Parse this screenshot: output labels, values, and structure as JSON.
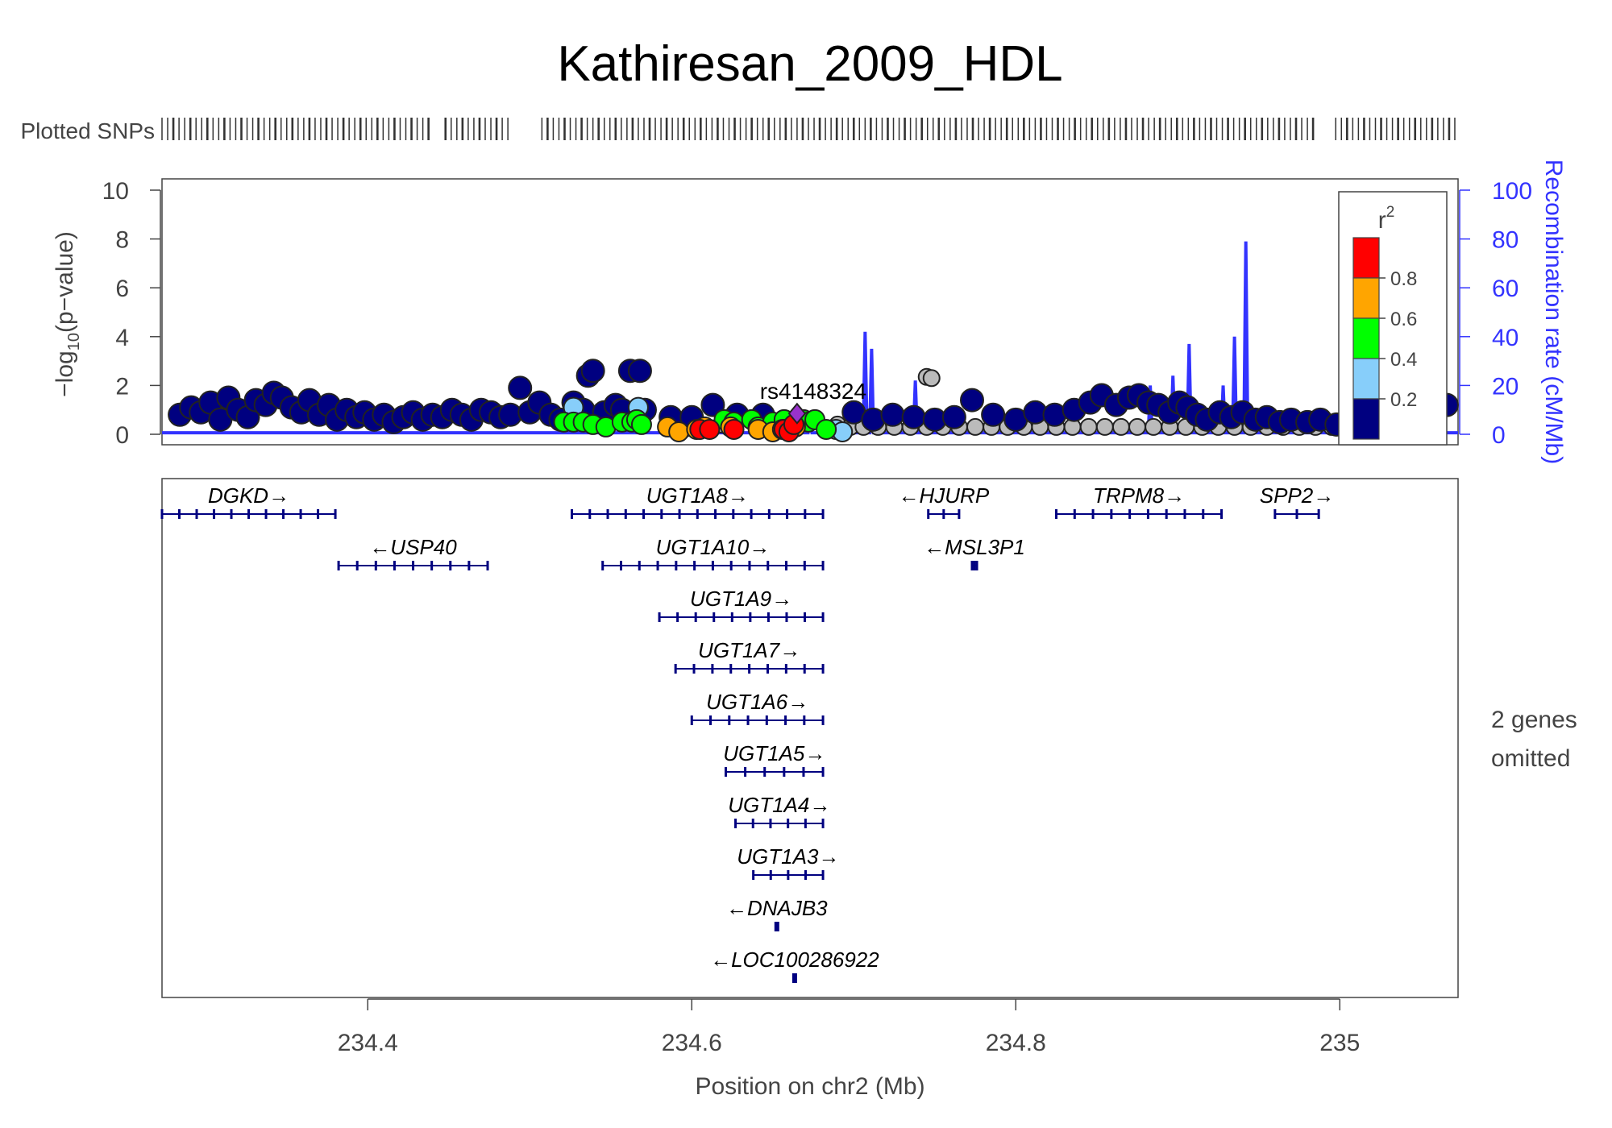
{
  "chart_data": {
    "type": "scatter",
    "title": "Kathiresan_2009_HDL",
    "plotted_snps_label": "Plotted SNPs",
    "xlabel": "Position on chr2 (Mb)",
    "ylabel_prefix": "−log",
    "ylabel_sub": "10",
    "ylabel_suffix": "(p−value)",
    "ylabel_right": "Recombination rate (cM/Mb)",
    "xlim": [
      234.273,
      235.073
    ],
    "ylim": [
      0,
      10
    ],
    "ylim_right": [
      0,
      100
    ],
    "x_ticks": [
      234.4,
      234.6,
      234.8,
      235
    ],
    "x_tick_labels": [
      "234.4",
      "234.6",
      "234.8",
      "235"
    ],
    "y_ticks": [
      0,
      2,
      4,
      6,
      8,
      10
    ],
    "y_tick_labels": [
      "0",
      "2",
      "4",
      "6",
      "8",
      "10"
    ],
    "y_right_ticks": [
      0,
      20,
      40,
      60,
      80,
      100
    ],
    "y_right_tick_labels": [
      "0",
      "20",
      "40",
      "60",
      "80",
      "100"
    ],
    "lead_snp_label": "rs4148324",
    "lead_snp": {
      "x": 234.665,
      "y": 0.85
    },
    "legend": {
      "title": "r",
      "title_sup": "2",
      "placement": "top-right",
      "break_labels": [
        "0.8",
        "0.6",
        "0.4",
        "0.2"
      ],
      "colors": [
        "#FF0000",
        "#FFA500",
        "#00FF00",
        "#87CEFA",
        "#000080"
      ]
    },
    "colors": {
      "recomb": "#3333ff",
      "gene": "#000080",
      "snp_outline": "#222222",
      "lead": "#9932CC",
      "gray": "#bbbbbb",
      "axis": "#444444"
    },
    "recomb_peaks": [
      {
        "x": 234.673,
        "y": 7
      },
      {
        "x": 234.681,
        "y": 5
      },
      {
        "x": 234.707,
        "y": 42
      },
      {
        "x": 234.711,
        "y": 35
      },
      {
        "x": 234.738,
        "y": 22
      },
      {
        "x": 234.883,
        "y": 20
      },
      {
        "x": 234.897,
        "y": 24
      },
      {
        "x": 234.907,
        "y": 37
      },
      {
        "x": 234.928,
        "y": 20
      },
      {
        "x": 234.935,
        "y": 40
      },
      {
        "x": 234.942,
        "y": 79
      }
    ],
    "navy_points": [
      [
        234.284,
        0.8
      ],
      [
        234.291,
        1.1
      ],
      [
        234.297,
        0.9
      ],
      [
        234.303,
        1.3
      ],
      [
        234.309,
        0.6
      ],
      [
        234.314,
        1.5
      ],
      [
        234.32,
        1.0
      ],
      [
        234.326,
        0.7
      ],
      [
        234.331,
        1.4
      ],
      [
        234.337,
        1.2
      ],
      [
        234.342,
        1.7
      ],
      [
        234.347,
        1.5
      ],
      [
        234.353,
        1.1
      ],
      [
        234.359,
        0.9
      ],
      [
        234.364,
        1.4
      ],
      [
        234.37,
        0.8
      ],
      [
        234.376,
        1.2
      ],
      [
        234.381,
        0.6
      ],
      [
        234.387,
        1.0
      ],
      [
        234.393,
        0.7
      ],
      [
        234.398,
        0.9
      ],
      [
        234.404,
        0.6
      ],
      [
        234.41,
        0.8
      ],
      [
        234.416,
        0.5
      ],
      [
        234.422,
        0.7
      ],
      [
        234.428,
        0.9
      ],
      [
        234.434,
        0.6
      ],
      [
        234.44,
        0.8
      ],
      [
        234.446,
        0.7
      ],
      [
        234.452,
        1.0
      ],
      [
        234.458,
        0.8
      ],
      [
        234.464,
        0.6
      ],
      [
        234.47,
        1.0
      ],
      [
        234.476,
        0.9
      ],
      [
        234.482,
        0.7
      ],
      [
        234.488,
        0.8
      ],
      [
        234.494,
        1.9
      ],
      [
        234.5,
        0.9
      ],
      [
        234.506,
        1.3
      ],
      [
        234.513,
        0.8
      ],
      [
        234.519,
        0.6
      ],
      [
        234.527,
        1.3
      ],
      [
        234.533,
        1.0
      ],
      [
        234.536,
        2.4
      ],
      [
        234.539,
        2.6
      ],
      [
        234.546,
        0.9
      ],
      [
        234.553,
        1.2
      ],
      [
        234.557,
        1.0
      ],
      [
        234.562,
        2.6
      ],
      [
        234.568,
        2.6
      ],
      [
        234.571,
        1.0
      ],
      [
        234.587,
        0.7
      ],
      [
        234.6,
        0.7
      ],
      [
        234.613,
        1.2
      ],
      [
        234.628,
        0.8
      ],
      [
        234.644,
        0.8
      ],
      [
        234.7,
        0.9
      ],
      [
        234.712,
        0.6
      ],
      [
        234.724,
        0.8
      ],
      [
        234.737,
        0.7
      ],
      [
        234.75,
        0.6
      ],
      [
        234.762,
        0.7
      ],
      [
        234.773,
        1.4
      ],
      [
        234.786,
        0.8
      ],
      [
        234.8,
        0.6
      ],
      [
        234.812,
        0.9
      ],
      [
        234.824,
        0.8
      ],
      [
        234.836,
        1.0
      ],
      [
        234.846,
        1.3
      ],
      [
        234.853,
        1.6
      ],
      [
        234.862,
        1.2
      ],
      [
        234.87,
        1.5
      ],
      [
        234.876,
        1.6
      ],
      [
        234.882,
        1.3
      ],
      [
        234.888,
        1.2
      ],
      [
        234.895,
        0.9
      ],
      [
        234.901,
        1.3
      ],
      [
        234.906,
        1.1
      ],
      [
        234.912,
        0.8
      ],
      [
        234.918,
        0.6
      ],
      [
        234.926,
        0.9
      ],
      [
        234.933,
        0.7
      ],
      [
        234.94,
        0.9
      ],
      [
        234.948,
        0.6
      ],
      [
        234.955,
        0.7
      ],
      [
        234.963,
        0.5
      ],
      [
        234.97,
        0.6
      ],
      [
        234.98,
        0.5
      ],
      [
        234.988,
        0.6
      ],
      [
        234.998,
        0.4
      ],
      [
        235.008,
        0.5
      ],
      [
        235.018,
        0.4
      ],
      [
        235.03,
        0.5
      ],
      [
        235.038,
        0.6
      ],
      [
        235.066,
        1.2
      ]
    ],
    "gray_points": [
      [
        234.585,
        0.3
      ],
      [
        234.595,
        0.2
      ],
      [
        234.618,
        0.4
      ],
      [
        234.648,
        0.3
      ],
      [
        234.69,
        0.4
      ],
      [
        234.698,
        0.3
      ],
      [
        234.706,
        0.3
      ],
      [
        234.715,
        0.3
      ],
      [
        234.725,
        0.3
      ],
      [
        234.735,
        0.3
      ],
      [
        234.745,
        0.3
      ],
      [
        234.755,
        0.3
      ],
      [
        234.765,
        0.3
      ],
      [
        234.775,
        0.3
      ],
      [
        234.785,
        0.3
      ],
      [
        234.795,
        0.3
      ],
      [
        234.805,
        0.3
      ],
      [
        234.815,
        0.3
      ],
      [
        234.825,
        0.3
      ],
      [
        234.835,
        0.3
      ],
      [
        234.845,
        0.3
      ],
      [
        234.855,
        0.3
      ],
      [
        234.865,
        0.3
      ],
      [
        234.875,
        0.3
      ],
      [
        234.885,
        0.3
      ],
      [
        234.895,
        0.3
      ],
      [
        234.905,
        0.3
      ],
      [
        234.915,
        0.3
      ],
      [
        234.925,
        0.3
      ],
      [
        234.935,
        0.3
      ],
      [
        234.945,
        0.3
      ],
      [
        234.955,
        0.3
      ],
      [
        234.965,
        0.3
      ],
      [
        234.975,
        0.3
      ],
      [
        234.985,
        0.3
      ],
      [
        234.995,
        0.3
      ],
      [
        235.005,
        0.3
      ],
      [
        235.015,
        0.3
      ],
      [
        235.025,
        0.3
      ],
      [
        235.035,
        0.3
      ],
      [
        234.745,
        2.35
      ],
      [
        234.748,
        2.3
      ]
    ],
    "lightblue_points": [
      [
        234.527,
        1.1
      ],
      [
        234.567,
        1.1
      ],
      [
        234.689,
        0.2
      ],
      [
        234.693,
        0.1
      ]
    ],
    "green_points": [
      [
        234.521,
        0.5
      ],
      [
        234.527,
        0.5
      ],
      [
        234.533,
        0.5
      ],
      [
        234.539,
        0.4
      ],
      [
        234.547,
        0.3
      ],
      [
        234.557,
        0.5
      ],
      [
        234.563,
        0.5
      ],
      [
        234.566,
        0.6
      ],
      [
        234.569,
        0.4
      ],
      [
        234.62,
        0.6
      ],
      [
        234.626,
        0.5
      ],
      [
        234.637,
        0.6
      ],
      [
        234.641,
        0.3
      ],
      [
        234.65,
        0.5
      ],
      [
        234.657,
        0.6
      ],
      [
        234.669,
        0.6
      ],
      [
        234.672,
        0.5
      ],
      [
        234.676,
        0.6
      ],
      [
        234.683,
        0.2
      ]
    ],
    "orange_points": [
      [
        234.585,
        0.3
      ],
      [
        234.592,
        0.1
      ],
      [
        234.603,
        0.2
      ],
      [
        234.608,
        0.3
      ],
      [
        234.624,
        0.3
      ],
      [
        234.641,
        0.2
      ],
      [
        234.65,
        0.1
      ],
      [
        234.656,
        0.2
      ],
      [
        234.664,
        0.3
      ]
    ],
    "red_points": [
      [
        234.605,
        0.2
      ],
      [
        234.611,
        0.2
      ],
      [
        234.626,
        0.2
      ],
      [
        234.657,
        0.2
      ],
      [
        234.66,
        0.1
      ],
      [
        234.663,
        0.4
      ]
    ],
    "snp_ticks": {
      "start": 234.273,
      "end": 235.073,
      "step": 0.0035
    },
    "gene_panel": {
      "note_lines": [
        "2 genes",
        "omitted"
      ],
      "genes": [
        {
          "name": "DGKD",
          "strand": "+",
          "start": 234.273,
          "end": 234.38,
          "row": 0
        },
        {
          "name": "UGT1A8",
          "strand": "+",
          "start": 234.526,
          "end": 234.681,
          "row": 0
        },
        {
          "name": "HJURP",
          "strand": "-",
          "start": 234.746,
          "end": 234.765,
          "row": 0
        },
        {
          "name": "TRPM8",
          "strand": "+",
          "start": 234.825,
          "end": 234.927,
          "row": 0
        },
        {
          "name": "SPP2",
          "strand": "+",
          "start": 234.96,
          "end": 234.987,
          "row": 0
        },
        {
          "name": "USP40",
          "strand": "-",
          "start": 234.382,
          "end": 234.474,
          "row": 1
        },
        {
          "name": "UGT1A10",
          "strand": "+",
          "start": 234.545,
          "end": 234.681,
          "row": 1
        },
        {
          "name": "MSL3P1",
          "strand": "-",
          "start": 234.773,
          "end": 234.776,
          "row": 1
        },
        {
          "name": "UGT1A9",
          "strand": "+",
          "start": 234.58,
          "end": 234.681,
          "row": 2
        },
        {
          "name": "UGT1A7",
          "strand": "+",
          "start": 234.59,
          "end": 234.681,
          "row": 3
        },
        {
          "name": "UGT1A6",
          "strand": "+",
          "start": 234.6,
          "end": 234.681,
          "row": 4
        },
        {
          "name": "UGT1A5",
          "strand": "+",
          "start": 234.621,
          "end": 234.681,
          "row": 5
        },
        {
          "name": "UGT1A4",
          "strand": "+",
          "start": 234.627,
          "end": 234.681,
          "row": 6
        },
        {
          "name": "UGT1A3",
          "strand": "+",
          "start": 234.638,
          "end": 234.681,
          "row": 7
        },
        {
          "name": "DNAJB3",
          "strand": "-",
          "start": 234.652,
          "end": 234.653,
          "row": 8
        },
        {
          "name": "LOC100286922",
          "strand": "-",
          "start": 234.663,
          "end": 234.664,
          "row": 9
        }
      ]
    }
  }
}
